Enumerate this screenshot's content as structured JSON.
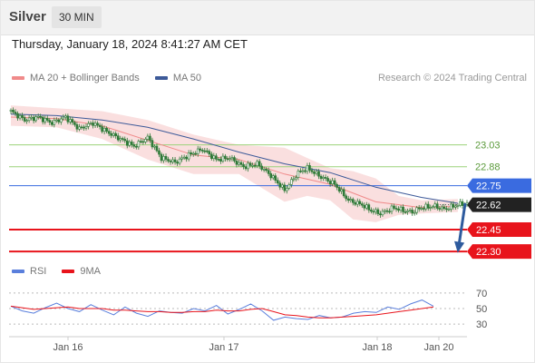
{
  "header": {
    "symbol": "Silver",
    "interval": "30 MIN",
    "timestamp": "Thursday, January 18, 2024 8:41:27 AM CET"
  },
  "legend": {
    "ma20_label": "MA 20 + Bollinger Bands",
    "ma50_label": "MA 50",
    "credit": "Research © 2024 Trading Central",
    "rsi_label": "RSI",
    "rsi_ma_label": "9MA"
  },
  "colors": {
    "ma20": "#f08a8a",
    "bands": "#f7c9c9",
    "ma50": "#3d5a99",
    "candle": "#2f7a38",
    "resistance": "#9bd27a",
    "pivot": "#3a6be0",
    "support": "#e8141c",
    "current": "#222222",
    "arrow": "#2e5b9e",
    "rsi": "#5a7fdc",
    "rsi_ma": "#e8141c"
  },
  "chart_data": [
    {
      "type": "candlestick",
      "title": "Silver",
      "interval": "30 MIN",
      "ylim": [
        22.22,
        23.4
      ],
      "x_ticks": [
        "Jan 16",
        "Jan 17",
        "Jan 18",
        "Jan 20"
      ],
      "close_path": [
        [
          0,
          23.26
        ],
        [
          6,
          23.2
        ],
        [
          12,
          23.22
        ],
        [
          18,
          23.18
        ],
        [
          24,
          23.22
        ],
        [
          30,
          23.14
        ],
        [
          36,
          23.18
        ],
        [
          42,
          23.12
        ],
        [
          48,
          23.07
        ],
        [
          54,
          23.02
        ],
        [
          60,
          23.08
        ],
        [
          66,
          22.94
        ],
        [
          72,
          22.91
        ],
        [
          78,
          22.96
        ],
        [
          84,
          23.0
        ],
        [
          90,
          22.93
        ],
        [
          96,
          22.94
        ],
        [
          102,
          22.88
        ],
        [
          108,
          22.9
        ],
        [
          114,
          22.82
        ],
        [
          120,
          22.72
        ],
        [
          126,
          22.84
        ],
        [
          130,
          22.87
        ],
        [
          136,
          22.81
        ],
        [
          142,
          22.76
        ],
        [
          148,
          22.65
        ],
        [
          154,
          22.62
        ],
        [
          158,
          22.58
        ],
        [
          162,
          22.56
        ],
        [
          168,
          22.6
        ],
        [
          172,
          22.58
        ],
        [
          176,
          22.57
        ],
        [
          180,
          22.6
        ],
        [
          186,
          22.61
        ],
        [
          190,
          22.59
        ],
        [
          196,
          22.62
        ],
        [
          200,
          22.63
        ]
      ],
      "levels": [
        {
          "label": "23.03",
          "value": 23.03,
          "kind": "resistance"
        },
        {
          "label": "22.88",
          "value": 22.88,
          "kind": "resistance"
        },
        {
          "label": "22.75",
          "value": 22.75,
          "kind": "pivot"
        },
        {
          "label": "22.62",
          "value": 22.62,
          "kind": "current"
        },
        {
          "label": "22.45",
          "value": 22.45,
          "kind": "support"
        },
        {
          "label": "22.30",
          "value": 22.3,
          "kind": "support"
        }
      ],
      "ma20": [
        [
          0,
          23.22
        ],
        [
          20,
          23.21
        ],
        [
          40,
          23.16
        ],
        [
          60,
          23.06
        ],
        [
          80,
          22.96
        ],
        [
          100,
          22.93
        ],
        [
          120,
          22.83
        ],
        [
          140,
          22.76
        ],
        [
          160,
          22.64
        ],
        [
          180,
          22.6
        ],
        [
          196,
          22.61
        ]
      ],
      "ma50": [
        [
          0,
          23.24
        ],
        [
          20,
          23.23
        ],
        [
          40,
          23.2
        ],
        [
          60,
          23.15
        ],
        [
          80,
          23.07
        ],
        [
          100,
          22.98
        ],
        [
          120,
          22.9
        ],
        [
          140,
          22.84
        ],
        [
          160,
          22.74
        ],
        [
          180,
          22.67
        ],
        [
          196,
          22.63
        ]
      ],
      "bb_upper": [
        [
          0,
          23.3
        ],
        [
          20,
          23.28
        ],
        [
          40,
          23.26
        ],
        [
          60,
          23.2
        ],
        [
          80,
          23.1
        ],
        [
          100,
          23.03
        ],
        [
          120,
          23.01
        ],
        [
          130,
          22.94
        ],
        [
          140,
          22.87
        ],
        [
          150,
          22.85
        ],
        [
          160,
          22.8
        ],
        [
          170,
          22.68
        ],
        [
          180,
          22.65
        ],
        [
          196,
          22.66
        ]
      ],
      "bb_lower": [
        [
          0,
          23.16
        ],
        [
          20,
          23.15
        ],
        [
          40,
          23.07
        ],
        [
          60,
          22.93
        ],
        [
          80,
          22.83
        ],
        [
          100,
          22.83
        ],
        [
          120,
          22.64
        ],
        [
          130,
          22.68
        ],
        [
          140,
          22.65
        ],
        [
          150,
          22.52
        ],
        [
          160,
          22.5
        ],
        [
          170,
          22.55
        ],
        [
          180,
          22.56
        ],
        [
          196,
          22.57
        ]
      ],
      "projection": {
        "from": 22.63,
        "to": 22.34
      }
    },
    {
      "type": "line",
      "title": "RSI",
      "ylim": [
        22,
        78
      ],
      "y_ticks": [
        70,
        50,
        30
      ],
      "series": [
        {
          "name": "RSI",
          "values": [
            53,
            47,
            44,
            51,
            57,
            50,
            46,
            55,
            48,
            42,
            52,
            44,
            40,
            47,
            45,
            44,
            50,
            47,
            54,
            43,
            49,
            56,
            47,
            35,
            39,
            37,
            36,
            41,
            38,
            39,
            44,
            46,
            45,
            52,
            49,
            56,
            61,
            53
          ]
        },
        {
          "name": "9MA",
          "values": [
            53,
            51,
            49,
            50,
            51,
            52,
            50,
            50,
            50,
            48,
            48,
            47,
            46,
            46,
            45,
            45,
            46,
            46,
            48,
            47,
            47,
            49,
            50,
            46,
            42,
            41,
            39,
            38,
            38,
            39,
            40,
            41,
            42,
            44,
            46,
            48,
            50,
            52
          ]
        }
      ]
    }
  ]
}
